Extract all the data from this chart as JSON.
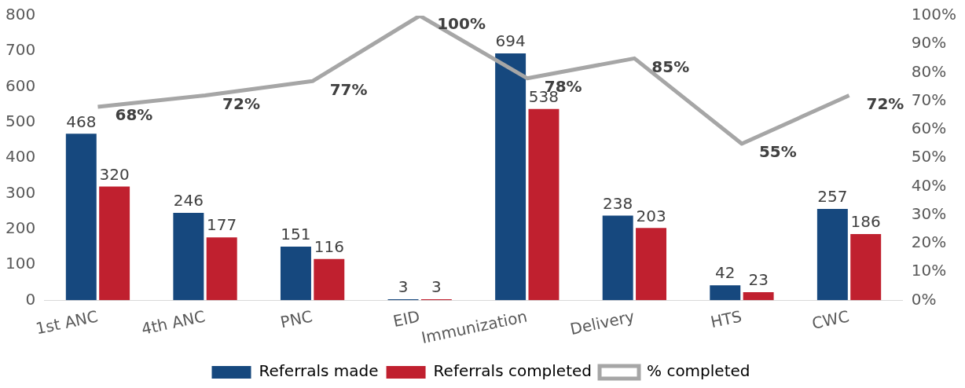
{
  "chart_data": {
    "type": "bar",
    "categories": [
      "1st ANC",
      "4th ANC",
      "PNC",
      "EID",
      "Immunization",
      "Delivery",
      "HTS",
      "CWC"
    ],
    "series": [
      {
        "name": "Referrals made",
        "color": "#16487e",
        "values": [
          468,
          246,
          151,
          3,
          694,
          238,
          42,
          257
        ],
        "value_labels": [
          "468",
          "246",
          "151",
          "3",
          "694",
          "238",
          "42",
          "257"
        ]
      },
      {
        "name": "Referrals completed",
        "color": "#c0202f",
        "values": [
          320,
          177,
          116,
          3,
          538,
          203,
          23,
          186
        ],
        "value_labels": [
          "320",
          "177",
          "116",
          "3",
          "538",
          "203",
          "23",
          "186"
        ]
      },
      {
        "name": "% completed",
        "type": "line",
        "axis": "y2",
        "color": "#a6a6a6",
        "marker": "none",
        "line_style": "solid",
        "values": [
          68,
          72,
          77,
          100,
          78,
          85,
          55,
          72
        ],
        "value_labels": [
          "68%",
          "72%",
          "77%",
          "100%",
          "78%",
          "85%",
          "55%",
          "72%"
        ]
      }
    ],
    "ylim": [
      0,
      800
    ],
    "yticks": [
      0,
      100,
      200,
      300,
      400,
      500,
      600,
      700,
      800
    ],
    "y2lim": [
      0,
      100
    ],
    "y2ticks": [
      {
        "value": 0,
        "label": "0%"
      },
      {
        "value": 10,
        "label": "10%"
      },
      {
        "value": 20,
        "label": "20%"
      },
      {
        "value": 30,
        "label": "30%"
      },
      {
        "value": 40,
        "label": "40%"
      },
      {
        "value": 50,
        "label": "50%"
      },
      {
        "value": 60,
        "label": "60%"
      },
      {
        "value": 70,
        "label": "70%"
      },
      {
        "value": 80,
        "label": "80%"
      },
      {
        "value": 90,
        "label": "90%"
      },
      {
        "value": 100,
        "label": "100%"
      }
    ],
    "grid": false,
    "legend": "bottom"
  }
}
